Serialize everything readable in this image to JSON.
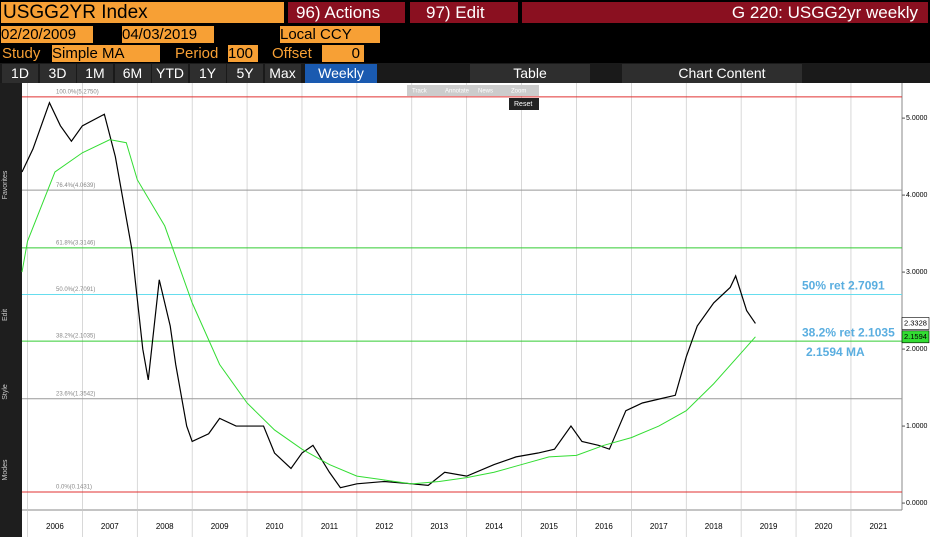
{
  "header": {
    "security": "USGG2YR Index",
    "actions": "96) Actions",
    "edit": "97) Edit",
    "window_title": "G 220: USGG2yr weekly"
  },
  "range": {
    "from": "02/20/2009",
    "to": "04/03/2019",
    "currency": "Local CCY"
  },
  "study": {
    "label": "Study",
    "name": "Simple MA",
    "period_label": "Period",
    "period": "100",
    "offset_label": "Offset",
    "offset": "0"
  },
  "toolbar": {
    "periods": [
      "1D",
      "3D",
      "1M",
      "6M",
      "YTD",
      "1Y",
      "5Y",
      "Max"
    ],
    "frequency": "Weekly",
    "table": "Table",
    "chart_content": "Chart Content"
  },
  "floating": {
    "tools": [
      "Track",
      "Annotate",
      "News",
      "Zoom"
    ],
    "reset": "Reset"
  },
  "sidebar": {
    "sections": [
      "Favorites",
      "Edit",
      "Style",
      "Modes"
    ]
  },
  "chart_data": {
    "type": "line",
    "xlim": [
      2005.9,
      2021.93
    ],
    "xticks": [
      2006,
      2007,
      2008,
      2009,
      2010,
      2011,
      2012,
      2013,
      2014,
      2015,
      2016,
      2017,
      2018,
      2019,
      2020,
      2021
    ],
    "ylim": [
      -0.09,
      5.43
    ],
    "yticks": [
      {
        "value": 0,
        "label": "0.0000"
      },
      {
        "value": 1,
        "label": "1.0000"
      },
      {
        "value": 2,
        "label": "2.0000"
      },
      {
        "value": 3,
        "label": "3.0000"
      },
      {
        "value": 4,
        "label": "4.0000"
      },
      {
        "value": 5,
        "label": "5.0000"
      }
    ],
    "grid": true,
    "series": [
      {
        "name": "USGG2YR",
        "color": "#000000",
        "x": [
          2005.9,
          2006.1,
          2006.4,
          2006.6,
          2006.8,
          2007.0,
          2007.4,
          2007.6,
          2007.9,
          2008.1,
          2008.2,
          2008.4,
          2008.6,
          2008.7,
          2008.9,
          2009.0,
          2009.3,
          2009.5,
          2009.8,
          2010.0,
          2010.3,
          2010.5,
          2010.8,
          2011.0,
          2011.2,
          2011.5,
          2011.7,
          2012.0,
          2012.5,
          2013.0,
          2013.3,
          2013.6,
          2014.0,
          2014.5,
          2014.9,
          2015.3,
          2015.6,
          2015.9,
          2016.1,
          2016.4,
          2016.6,
          2016.9,
          2017.2,
          2017.5,
          2017.8,
          2018.0,
          2018.2,
          2018.5,
          2018.8,
          2018.9,
          2019.1,
          2019.26
        ],
        "values": [
          4.3,
          4.6,
          5.2,
          4.9,
          4.7,
          4.9,
          5.05,
          4.5,
          3.3,
          2.0,
          1.6,
          2.9,
          2.3,
          1.8,
          1.0,
          0.8,
          0.9,
          1.1,
          1.0,
          1.0,
          1.0,
          0.65,
          0.45,
          0.65,
          0.75,
          0.4,
          0.2,
          0.25,
          0.28,
          0.25,
          0.23,
          0.4,
          0.35,
          0.5,
          0.6,
          0.65,
          0.7,
          1.0,
          0.8,
          0.75,
          0.7,
          1.2,
          1.3,
          1.35,
          1.4,
          1.9,
          2.3,
          2.6,
          2.8,
          2.95,
          2.5,
          2.3328
        ]
      },
      {
        "name": "Simple MA",
        "color": "#33dd33",
        "x": [
          2005.9,
          2006.0,
          2006.5,
          2007.0,
          2007.5,
          2007.8,
          2008.0,
          2008.5,
          2009.0,
          2009.5,
          2010.0,
          2010.5,
          2011.0,
          2011.5,
          2012.0,
          2012.5,
          2013.0,
          2013.5,
          2014.0,
          2014.5,
          2015.0,
          2015.5,
          2016.0,
          2016.5,
          2017.0,
          2017.5,
          2018.0,
          2018.5,
          2019.0,
          2019.26
        ],
        "values": [
          3.0,
          3.4,
          4.3,
          4.55,
          4.72,
          4.68,
          4.2,
          3.6,
          2.6,
          1.8,
          1.3,
          0.95,
          0.7,
          0.5,
          0.35,
          0.3,
          0.25,
          0.28,
          0.33,
          0.4,
          0.5,
          0.6,
          0.62,
          0.75,
          0.85,
          1.0,
          1.2,
          1.55,
          1.95,
          2.1594
        ]
      }
    ],
    "levels": [
      {
        "value": 5.275,
        "label": "100.0%(5.2750)",
        "color": "#e03030"
      },
      {
        "value": 4.0639,
        "label": "76.4%(4.0639)",
        "color": "#999999"
      },
      {
        "value": 3.3146,
        "label": "61.8%(3.3146)",
        "color": "#33cc33"
      },
      {
        "value": 2.7091,
        "label": "50.0%(2.7091)",
        "color": "#66ddee"
      },
      {
        "value": 2.1035,
        "label": "38.2%(2.1035)",
        "color": "#33cc33"
      },
      {
        "value": 1.3542,
        "label": "23.6%(1.3542)",
        "color": "#999999"
      },
      {
        "value": 0.1431,
        "label": "0.0%(0.1431)",
        "color": "#e03030"
      }
    ],
    "annotations": [
      {
        "text": "50% ret 2.7091",
        "value": 2.7091
      },
      {
        "text": "38.2% ret 2.1035",
        "value": 2.1035
      },
      {
        "text": "2.1594 MA",
        "value": 2.1594
      }
    ],
    "last_values": [
      {
        "label": "2.3328",
        "value": 2.3328
      },
      {
        "label": "2.1594",
        "value": 2.1594
      }
    ]
  }
}
